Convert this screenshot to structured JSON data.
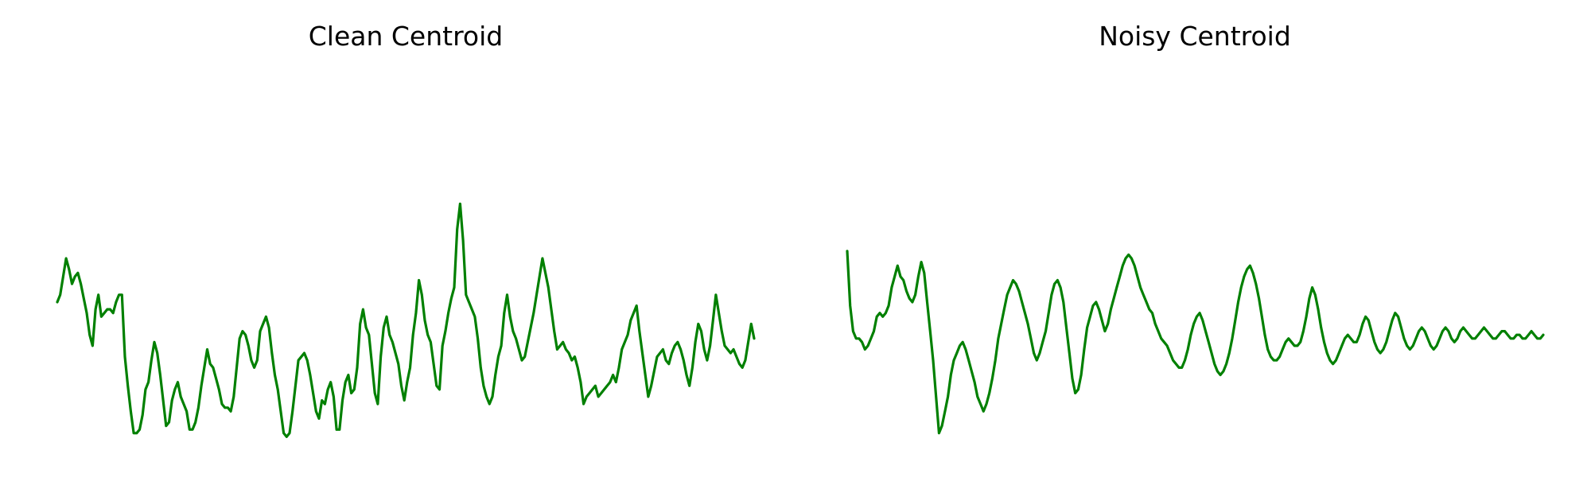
{
  "chart_data": [
    {
      "type": "line",
      "title": "Clean Centroid",
      "xlabel": "",
      "ylabel": "",
      "axes_visible": false,
      "grid": false,
      "legend": "none",
      "ylim": [
        0,
        1
      ],
      "color": "#008000",
      "series": [
        {
          "values": [
            0.38,
            0.4,
            0.45,
            0.5,
            0.47,
            0.43,
            0.45,
            0.46,
            0.43,
            0.39,
            0.35,
            0.29,
            0.26,
            0.36,
            0.4,
            0.34,
            0.35,
            0.36,
            0.36,
            0.35,
            0.38,
            0.4,
            0.4,
            0.23,
            0.15,
            0.08,
            0.02,
            0.02,
            0.03,
            0.07,
            0.14,
            0.16,
            0.22,
            0.27,
            0.24,
            0.18,
            0.11,
            0.04,
            0.05,
            0.11,
            0.14,
            0.16,
            0.12,
            0.1,
            0.08,
            0.03,
            0.03,
            0.05,
            0.09,
            0.15,
            0.2,
            0.25,
            0.21,
            0.2,
            0.17,
            0.14,
            0.1,
            0.09,
            0.09,
            0.08,
            0.12,
            0.2,
            0.28,
            0.3,
            0.29,
            0.26,
            0.22,
            0.2,
            0.22,
            0.3,
            0.32,
            0.34,
            0.31,
            0.24,
            0.18,
            0.14,
            0.08,
            0.02,
            0.01,
            0.02,
            0.08,
            0.15,
            0.22,
            0.23,
            0.24,
            0.22,
            0.18,
            0.13,
            0.08,
            0.06,
            0.11,
            0.1,
            0.14,
            0.16,
            0.12,
            0.03,
            0.03,
            0.11,
            0.16,
            0.18,
            0.13,
            0.14,
            0.2,
            0.32,
            0.36,
            0.31,
            0.29,
            0.21,
            0.13,
            0.1,
            0.23,
            0.31,
            0.34,
            0.29,
            0.27,
            0.24,
            0.21,
            0.15,
            0.11,
            0.16,
            0.2,
            0.29,
            0.35,
            0.44,
            0.4,
            0.33,
            0.29,
            0.27,
            0.21,
            0.15,
            0.14,
            0.26,
            0.3,
            0.35,
            0.39,
            0.42,
            0.58,
            0.65,
            0.55,
            0.4,
            0.38,
            0.36,
            0.34,
            0.28,
            0.2,
            0.15,
            0.12,
            0.1,
            0.12,
            0.18,
            0.23,
            0.26,
            0.35,
            0.4,
            0.34,
            0.3,
            0.28,
            0.25,
            0.22,
            0.23,
            0.27,
            0.31,
            0.35,
            0.4,
            0.45,
            0.5,
            0.46,
            0.42,
            0.36,
            0.3,
            0.25,
            0.26,
            0.27,
            0.25,
            0.24,
            0.22,
            0.23,
            0.2,
            0.16,
            0.1,
            0.12,
            0.13,
            0.14,
            0.15,
            0.12,
            0.13,
            0.14,
            0.15,
            0.16,
            0.18,
            0.16,
            0.2,
            0.25,
            0.27,
            0.29,
            0.33,
            0.35,
            0.37,
            0.3,
            0.24,
            0.18,
            0.12,
            0.15,
            0.19,
            0.23,
            0.24,
            0.25,
            0.22,
            0.21,
            0.24,
            0.26,
            0.27,
            0.25,
            0.22,
            0.18,
            0.15,
            0.2,
            0.27,
            0.32,
            0.3,
            0.25,
            0.22,
            0.26,
            0.33,
            0.4,
            0.35,
            0.3,
            0.26,
            0.25,
            0.24,
            0.25,
            0.23,
            0.21,
            0.2,
            0.22,
            0.27,
            0.32,
            0.28
          ]
        }
      ]
    },
    {
      "type": "line",
      "title": "Noisy Centroid",
      "xlabel": "",
      "ylabel": "",
      "axes_visible": false,
      "grid": false,
      "legend": "none",
      "ylim": [
        0,
        1
      ],
      "color": "#008000",
      "series": [
        {
          "values": [
            0.52,
            0.37,
            0.3,
            0.28,
            0.28,
            0.27,
            0.25,
            0.26,
            0.28,
            0.3,
            0.34,
            0.35,
            0.34,
            0.35,
            0.37,
            0.42,
            0.45,
            0.48,
            0.45,
            0.44,
            0.41,
            0.39,
            0.38,
            0.4,
            0.45,
            0.49,
            0.46,
            0.38,
            0.3,
            0.22,
            0.12,
            0.02,
            0.04,
            0.08,
            0.12,
            0.18,
            0.22,
            0.24,
            0.26,
            0.27,
            0.25,
            0.22,
            0.19,
            0.16,
            0.12,
            0.1,
            0.08,
            0.1,
            0.13,
            0.17,
            0.22,
            0.28,
            0.32,
            0.36,
            0.4,
            0.42,
            0.44,
            0.43,
            0.41,
            0.38,
            0.35,
            0.32,
            0.28,
            0.24,
            0.22,
            0.24,
            0.27,
            0.3,
            0.35,
            0.4,
            0.43,
            0.44,
            0.42,
            0.38,
            0.31,
            0.24,
            0.17,
            0.13,
            0.14,
            0.18,
            0.25,
            0.31,
            0.34,
            0.37,
            0.38,
            0.36,
            0.33,
            0.3,
            0.32,
            0.36,
            0.39,
            0.42,
            0.45,
            0.48,
            0.5,
            0.51,
            0.5,
            0.48,
            0.45,
            0.42,
            0.4,
            0.38,
            0.36,
            0.35,
            0.32,
            0.3,
            0.28,
            0.27,
            0.26,
            0.24,
            0.22,
            0.21,
            0.2,
            0.2,
            0.22,
            0.25,
            0.29,
            0.32,
            0.34,
            0.35,
            0.33,
            0.3,
            0.27,
            0.24,
            0.21,
            0.19,
            0.18,
            0.19,
            0.21,
            0.24,
            0.28,
            0.33,
            0.38,
            0.42,
            0.45,
            0.47,
            0.48,
            0.46,
            0.43,
            0.39,
            0.34,
            0.29,
            0.25,
            0.23,
            0.22,
            0.22,
            0.23,
            0.25,
            0.27,
            0.28,
            0.27,
            0.26,
            0.26,
            0.27,
            0.3,
            0.34,
            0.39,
            0.42,
            0.4,
            0.36,
            0.31,
            0.27,
            0.24,
            0.22,
            0.21,
            0.22,
            0.24,
            0.26,
            0.28,
            0.29,
            0.28,
            0.27,
            0.27,
            0.29,
            0.32,
            0.34,
            0.33,
            0.3,
            0.27,
            0.25,
            0.24,
            0.25,
            0.27,
            0.3,
            0.33,
            0.35,
            0.34,
            0.31,
            0.28,
            0.26,
            0.25,
            0.26,
            0.28,
            0.3,
            0.31,
            0.3,
            0.28,
            0.26,
            0.25,
            0.26,
            0.28,
            0.3,
            0.31,
            0.3,
            0.28,
            0.27,
            0.28,
            0.3,
            0.31,
            0.3,
            0.29,
            0.28,
            0.28,
            0.29,
            0.3,
            0.31,
            0.3,
            0.29,
            0.28,
            0.28,
            0.29,
            0.3,
            0.3,
            0.29,
            0.28,
            0.28,
            0.29,
            0.29,
            0.28,
            0.28,
            0.29,
            0.3,
            0.29,
            0.28,
            0.28,
            0.29
          ]
        }
      ]
    }
  ]
}
